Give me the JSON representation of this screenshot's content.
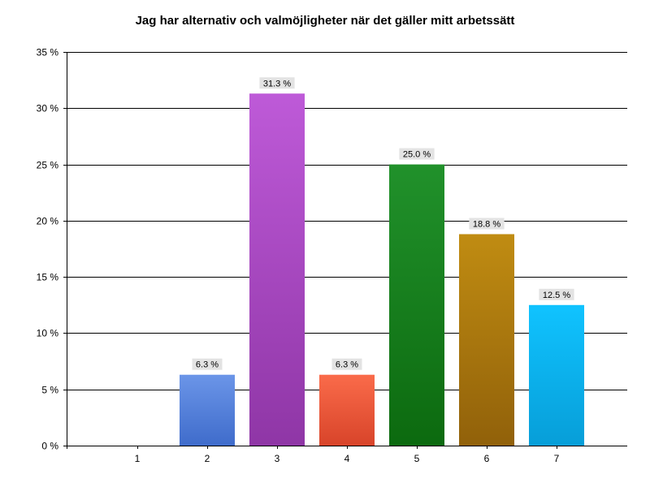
{
  "chart_data": {
    "type": "bar",
    "title": "Jag har alternativ och valmöjligheter när det gäller mitt arbetssätt",
    "categories": [
      "1",
      "2",
      "3",
      "4",
      "5",
      "6",
      "7"
    ],
    "values": [
      0,
      6.3,
      31.3,
      6.3,
      25.0,
      18.8,
      12.5
    ],
    "data_labels": [
      "",
      "6.3 %",
      "31.3 %",
      "6.3 %",
      "25.0 %",
      "18.8 %",
      "12.5 %"
    ],
    "ylim": [
      0,
      35
    ],
    "yticks": [
      0,
      5,
      10,
      15,
      20,
      25,
      30,
      35
    ],
    "ytick_labels": [
      "0 %",
      "5 %",
      "10 %",
      "15 %",
      "20 %",
      "25 %",
      "30 %",
      "35 %"
    ],
    "grid": true,
    "legend": "none",
    "bar_colors": [
      [
        "#9aa0a6",
        "#6f757a"
      ],
      [
        "#6b95e8",
        "#3f6ccb"
      ],
      [
        "#be5ad8",
        "#8f36a6"
      ],
      [
        "#fa6b4a",
        "#d8442a"
      ],
      [
        "#21912b",
        "#0c6a0f"
      ],
      [
        "#c08c12",
        "#91610a"
      ],
      [
        "#10c3ff",
        "#079ed8"
      ]
    ],
    "label_box_color": "#e3e3e3"
  }
}
